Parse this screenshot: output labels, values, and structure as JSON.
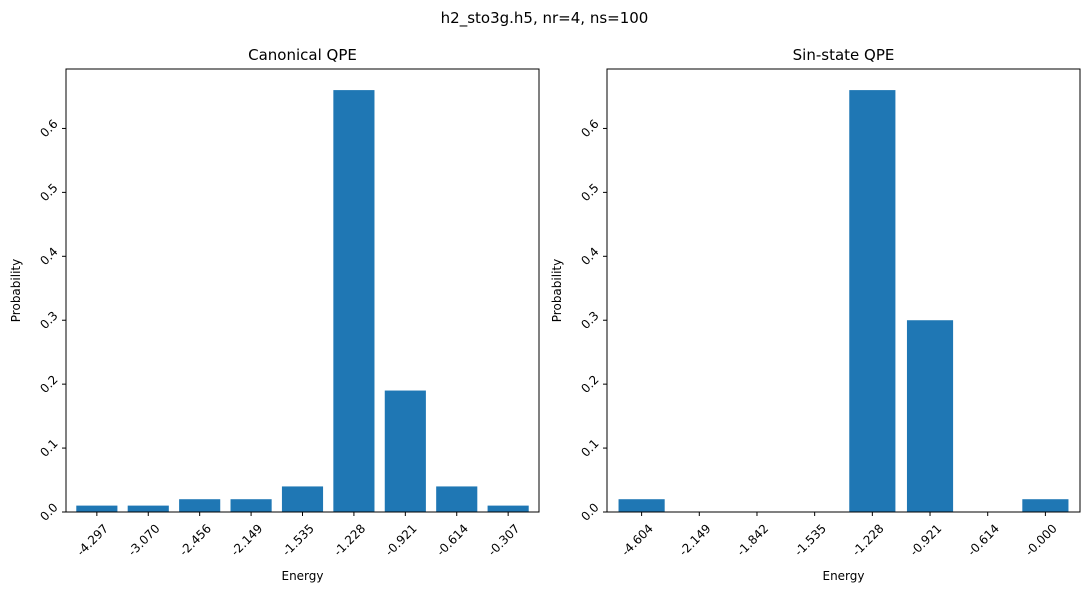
{
  "figure": {
    "suptitle": "h2_sto3g.h5, nr=4, ns=100"
  },
  "colors": {
    "bar": "#1f77b4",
    "axes": "#000000",
    "background": "#ffffff"
  },
  "chart_data": [
    {
      "type": "bar",
      "title": "Canonical QPE",
      "xlabel": "Energy",
      "ylabel": "Probability",
      "categories": [
        "-4.297",
        "-3.070",
        "-2.456",
        "-2.149",
        "-1.535",
        "-1.228",
        "-0.921",
        "-0.614",
        "-0.307"
      ],
      "values": [
        0.01,
        0.01,
        0.02,
        0.02,
        0.04,
        0.66,
        0.19,
        0.04,
        0.01
      ],
      "ylim": [
        0,
        0.693
      ],
      "yticks": [
        0.0,
        0.1,
        0.2,
        0.3,
        0.4,
        0.5,
        0.6
      ],
      "ytick_labels": [
        "0.0",
        "0.1",
        "0.2",
        "0.3",
        "0.4",
        "0.5",
        "0.6"
      ],
      "tick_rotation": 45,
      "grid": false,
      "legend": null
    },
    {
      "type": "bar",
      "title": "Sin-state QPE",
      "xlabel": "Energy",
      "ylabel": "Probability",
      "categories": [
        "-4.604",
        "-2.149",
        "-1.842",
        "-1.535",
        "-1.228",
        "-0.921",
        "-0.614",
        "-0.000"
      ],
      "values": [
        0.02,
        0.0,
        0.0,
        0.0,
        0.66,
        0.3,
        0.0,
        0.02
      ],
      "ylim": [
        0,
        0.693
      ],
      "yticks": [
        0.0,
        0.1,
        0.2,
        0.3,
        0.4,
        0.5,
        0.6
      ],
      "ytick_labels": [
        "0.0",
        "0.1",
        "0.2",
        "0.3",
        "0.4",
        "0.5",
        "0.6"
      ],
      "tick_rotation": 45,
      "grid": false,
      "legend": null
    }
  ]
}
